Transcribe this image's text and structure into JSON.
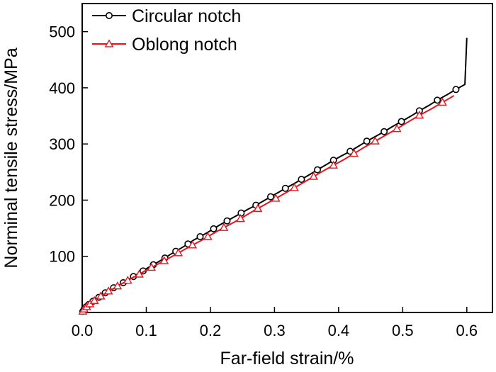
{
  "chart_data": {
    "type": "line",
    "title": "",
    "xlabel": "Far-field strain/%",
    "ylabel": "Norminal tensile stress/MPa",
    "xlim": [
      0,
      0.64
    ],
    "ylim": [
      0,
      550
    ],
    "x_ticks": [
      0.0,
      0.1,
      0.2,
      0.3,
      0.4,
      0.5,
      0.6
    ],
    "x_tick_labels": [
      "0.0",
      "0.1",
      "0.2",
      "0.3",
      "0.4",
      "0.5",
      "0.6"
    ],
    "y_ticks": [
      100,
      200,
      300,
      400,
      500
    ],
    "y_tick_labels": [
      "100",
      "200",
      "300",
      "400",
      "500"
    ],
    "grid": false,
    "legend_position": "top-left",
    "series": [
      {
        "name": "Circular notch",
        "color": "#000000",
        "marker": "circle",
        "x": [
          0.0,
          0.001,
          0.002,
          0.003,
          0.004,
          0.006,
          0.008,
          0.01,
          0.013,
          0.017,
          0.021,
          0.026,
          0.031,
          0.036,
          0.043,
          0.049,
          0.056,
          0.064,
          0.071,
          0.08,
          0.087,
          0.095,
          0.103,
          0.111,
          0.12,
          0.129,
          0.137,
          0.146,
          0.155,
          0.165,
          0.174,
          0.184,
          0.195,
          0.205,
          0.215,
          0.226,
          0.237,
          0.248,
          0.259,
          0.271,
          0.282,
          0.294,
          0.305,
          0.317,
          0.33,
          0.342,
          0.354,
          0.367,
          0.379,
          0.392,
          0.405,
          0.418,
          0.431,
          0.444,
          0.457,
          0.471,
          0.484,
          0.498,
          0.512,
          0.526,
          0.54,
          0.554,
          0.568,
          0.583,
          0.597,
          0.6
        ],
        "y": [
          0,
          2,
          4,
          6,
          8,
          10,
          12,
          14,
          17,
          20,
          23,
          27,
          31,
          35,
          39,
          44,
          48,
          53,
          58,
          64,
          69,
          74,
          80,
          85,
          91,
          97,
          103,
          109,
          115,
          122,
          129,
          135,
          142,
          149,
          156,
          163,
          170,
          177,
          184,
          191,
          198,
          206,
          213,
          221,
          229,
          237,
          245,
          254,
          262,
          271,
          279,
          287,
          296,
          305,
          313,
          322,
          331,
          340,
          349,
          359,
          368,
          378,
          387,
          397,
          406,
          489
        ],
        "marker_x": [
          0.001,
          0.003,
          0.006,
          0.01,
          0.017,
          0.026,
          0.036,
          0.049,
          0.064,
          0.08,
          0.095,
          0.111,
          0.129,
          0.146,
          0.165,
          0.184,
          0.205,
          0.226,
          0.248,
          0.271,
          0.294,
          0.317,
          0.342,
          0.367,
          0.392,
          0.418,
          0.444,
          0.471,
          0.498,
          0.526,
          0.554,
          0.583
        ],
        "marker_y": [
          2,
          6,
          10,
          14,
          20,
          27,
          35,
          44,
          53,
          64,
          74,
          85,
          97,
          109,
          122,
          135,
          149,
          163,
          177,
          191,
          206,
          221,
          237,
          254,
          271,
          287,
          305,
          322,
          340,
          359,
          378,
          397
        ]
      },
      {
        "name": "Oblong notch",
        "color": "#e8141c",
        "marker": "triangle",
        "x": [
          0.0,
          0.001,
          0.002,
          0.003,
          0.005,
          0.007,
          0.009,
          0.012,
          0.015,
          0.019,
          0.024,
          0.029,
          0.035,
          0.041,
          0.048,
          0.055,
          0.063,
          0.071,
          0.08,
          0.089,
          0.098,
          0.108,
          0.118,
          0.128,
          0.139,
          0.15,
          0.161,
          0.172,
          0.184,
          0.196,
          0.208,
          0.221,
          0.234,
          0.247,
          0.26,
          0.274,
          0.288,
          0.302,
          0.316,
          0.331,
          0.346,
          0.361,
          0.376,
          0.392,
          0.408,
          0.424,
          0.44,
          0.457,
          0.474,
          0.491,
          0.508,
          0.526,
          0.544,
          0.562,
          0.58
        ],
        "y": [
          0,
          2,
          4,
          6,
          8,
          10,
          12,
          15,
          18,
          21,
          25,
          29,
          33,
          38,
          42,
          47,
          52,
          57,
          63,
          68,
          74,
          80,
          86,
          92,
          99,
          106,
          113,
          120,
          127,
          135,
          143,
          151,
          159,
          167,
          176,
          185,
          194,
          203,
          212,
          222,
          232,
          242,
          252,
          262,
          272,
          283,
          294,
          305,
          316,
          327,
          339,
          351,
          362,
          374,
          386
        ],
        "marker_x": [
          0.001,
          0.003,
          0.007,
          0.012,
          0.019,
          0.029,
          0.041,
          0.055,
          0.071,
          0.089,
          0.108,
          0.128,
          0.15,
          0.172,
          0.196,
          0.221,
          0.247,
          0.274,
          0.302,
          0.331,
          0.361,
          0.392,
          0.424,
          0.457,
          0.491,
          0.526,
          0.562
        ],
        "marker_y": [
          2,
          6,
          10,
          15,
          21,
          29,
          38,
          47,
          57,
          68,
          80,
          92,
          106,
          120,
          135,
          151,
          167,
          185,
          203,
          222,
          242,
          262,
          283,
          305,
          327,
          351,
          374
        ]
      }
    ]
  }
}
